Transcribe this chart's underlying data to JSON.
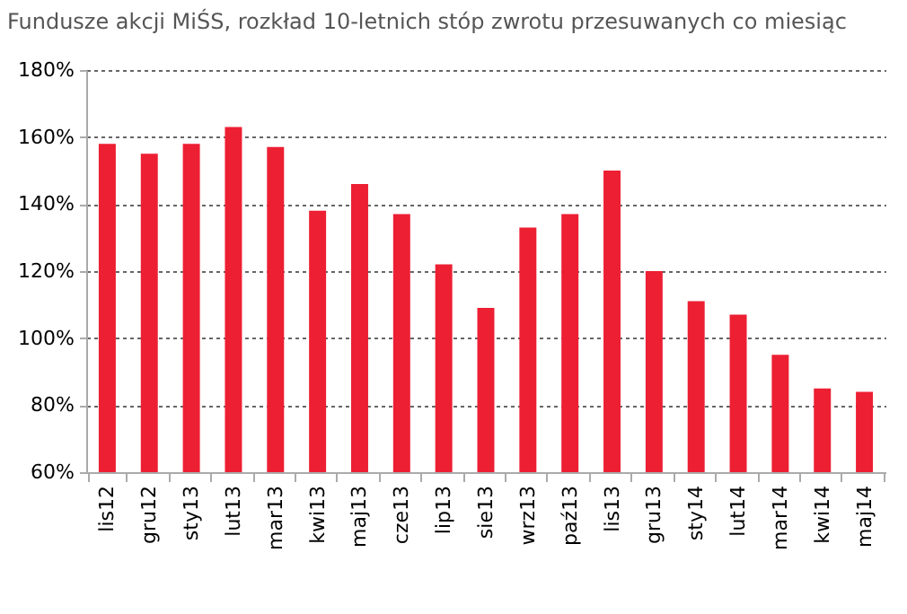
{
  "chart_data": {
    "type": "bar",
    "title": "Fundusze akcji MiŚS, rozkład 10-letnich stóp zwrotu przesuwanych co miesiąc",
    "categories": [
      "lis12",
      "gru12",
      "sty13",
      "lut13",
      "mar13",
      "kwi13",
      "maj13",
      "cze13",
      "lip13",
      "sie13",
      "wrz13",
      "paź13",
      "lis13",
      "gru13",
      "sty14",
      "lut14",
      "mar14",
      "kwi14",
      "maj14"
    ],
    "values": [
      158,
      155,
      158,
      163,
      157,
      138,
      146,
      137,
      122,
      109,
      133,
      137,
      150,
      120,
      111,
      107,
      95,
      85,
      84
    ],
    "color": "#ed1f33",
    "ylim": [
      60,
      180
    ],
    "yticks": [
      {
        "value": 60,
        "label": "60%"
      },
      {
        "value": 80,
        "label": "80%"
      },
      {
        "value": 100,
        "label": "100%"
      },
      {
        "value": 120,
        "label": "120%"
      },
      {
        "value": 140,
        "label": "140%"
      },
      {
        "value": 160,
        "label": "160%"
      },
      {
        "value": 180,
        "label": "180%"
      }
    ],
    "grid": "y"
  }
}
